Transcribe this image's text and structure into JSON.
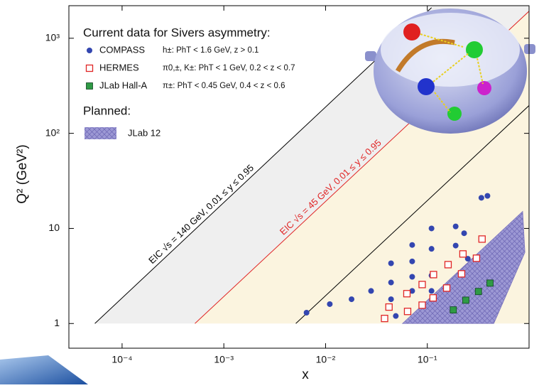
{
  "chart_data": {
    "type": "scatter",
    "xlabel": "x",
    "ylabel": "Q² (GeV²)",
    "xlog": true,
    "ylog": true,
    "xlim": [
      3e-05,
      1
    ],
    "ylim": [
      0.55,
      2200
    ],
    "xticks": [
      {
        "value": 0.0001,
        "label": "10⁻⁴"
      },
      {
        "value": 0.001,
        "label": "10⁻³"
      },
      {
        "value": 0.01,
        "label": "10⁻²"
      },
      {
        "value": 0.1,
        "label": "10⁻¹"
      }
    ],
    "yticks": [
      1,
      10,
      {
        "value": 100,
        "label": "10²"
      },
      {
        "value": 1000,
        "label": "10³"
      }
    ],
    "legend_title": "Current data for Sivers asymmetry:",
    "legend_planned": "Planned:",
    "series": [
      {
        "name": "COMPASS",
        "note": "h±: PhT < 1.6 GeV,  z > 0.1",
        "marker": "circle",
        "color": "#3346b0",
        "x": [
          0.0065,
          0.011,
          0.018,
          0.028,
          0.044,
          0.044,
          0.044,
          0.049,
          0.071,
          0.071,
          0.071,
          0.071,
          0.11,
          0.11,
          0.11,
          0.11,
          0.19,
          0.23,
          0.19,
          0.25,
          0.34,
          0.39
        ],
        "y": [
          1.3,
          1.6,
          1.8,
          2.2,
          2.7,
          4.3,
          1.8,
          1.2,
          6.7,
          4.5,
          3.1,
          2.2,
          10,
          6.1,
          3.2,
          2.2,
          10.5,
          8.9,
          6.6,
          4.8,
          21,
          22
        ]
      },
      {
        "name": "HERMES",
        "note": "π0,±, K±: PhT < 1 GeV, 0.2 < z < 0.7",
        "marker": "open-square",
        "color": "#e02525",
        "x": [
          0.038,
          0.042,
          0.064,
          0.063,
          0.089,
          0.089,
          0.114,
          0.115,
          0.155,
          0.16,
          0.217,
          0.224,
          0.304,
          0.345
        ],
        "y": [
          1.13,
          1.49,
          1.34,
          2.06,
          1.56,
          2.57,
          1.86,
          3.27,
          2.36,
          4.16,
          3.33,
          5.39,
          4.86,
          7.73
        ]
      },
      {
        "name": "JLab Hall-A",
        "note": "π±: PhT < 0.45 GeV,  0.4 < z < 0.6",
        "marker": "square",
        "color": "#2f9a45",
        "x": [
          0.18,
          0.239,
          0.318,
          0.413
        ],
        "y": [
          1.39,
          1.76,
          2.17,
          2.66
        ]
      },
      {
        "name": "JLab 12",
        "marker": "area",
        "color": "#9c98d4",
        "planned": true,
        "x": [
          0.057,
          0.865,
          0.91,
          0.45
        ],
        "y": [
          1,
          15.1,
          5.6,
          1
        ]
      }
    ],
    "lines": [
      {
        "label": "EIC √s = 140 GeV, 0.01 ≤ y ≤ 0.95",
        "color": "#000000",
        "x": [
          5.4e-05,
          0.11
        ],
        "y": [
          1,
          2100
        ]
      },
      {
        "color": "#000000",
        "x": [
          0.0051,
          1
        ],
        "y": [
          1,
          196
        ]
      },
      {
        "label": "EIC √s = 45 GeV, 0.01 ≤ y ≤ 0.95",
        "color": "#e02525",
        "x": [
          0.00052,
          1
        ],
        "y": [
          1,
          1924
        ]
      }
    ]
  }
}
